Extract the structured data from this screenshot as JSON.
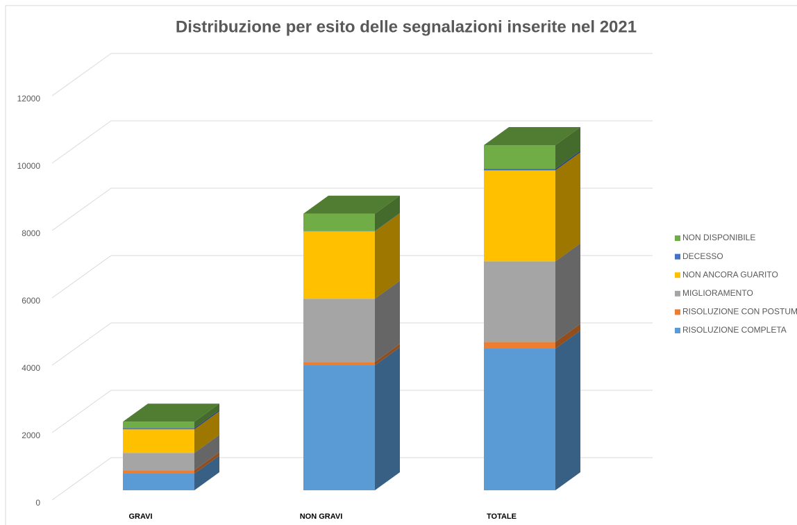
{
  "chart_data": {
    "type": "bar3d_stacked",
    "title": "Distribuzione per esito delle segnalazioni inserite nel 2021",
    "categories": [
      "GRAVI",
      "NON GRAVI",
      "TOTALE"
    ],
    "series": [
      {
        "name": "RISOLUZIONE COMPLETA",
        "color": "#5b9bd5",
        "values": [
          495,
          3711,
          4206
        ]
      },
      {
        "name": "RISOLUZIONE CON POSTUMI",
        "color": "#ed7d31",
        "values": [
          100,
          100,
          200
        ]
      },
      {
        "name": "MIGLIORAMENTO",
        "color": "#a5a5a5",
        "values": [
          515,
          1876,
          2391
        ]
      },
      {
        "name": "NON ANCORA GUARITO",
        "color": "#ffc000",
        "values": [
          700,
          2000,
          2700
        ]
      },
      {
        "name": "DECESSO",
        "color": "#4472c4",
        "values": [
          40,
          10,
          50
        ]
      },
      {
        "name": "NON DISPONIBILE",
        "color": "#70ad47",
        "values": [
          185,
          515,
          700
        ]
      }
    ],
    "ylim": [
      0,
      12000
    ],
    "yticks": [
      0,
      2000,
      4000,
      6000,
      8000,
      10000,
      12000
    ],
    "grid": true,
    "legend": "right"
  }
}
